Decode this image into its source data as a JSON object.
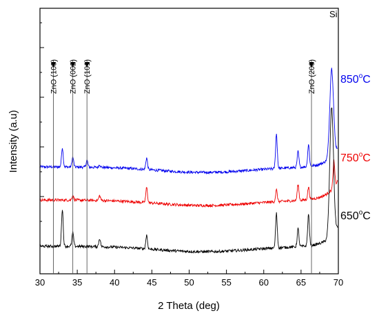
{
  "chart_data": {
    "type": "line",
    "title": "",
    "xlabel": "2 Theta (deg)",
    "ylabel": "Intensity (a.u)",
    "xlim": [
      30,
      70
    ],
    "x_ticks": [
      "30",
      "35",
      "40",
      "45",
      "50",
      "55",
      "60",
      "65",
      "70"
    ],
    "y_tick_labels_shown": false,
    "grid": false,
    "reference_lines": [
      {
        "x": 31.8,
        "label": "ZnO (100)"
      },
      {
        "x": 34.4,
        "label": "ZnO (002)"
      },
      {
        "x": 36.3,
        "label": "ZnO (101)"
      },
      {
        "x": 66.4,
        "label": "ZnO (200)"
      }
    ],
    "annotation": {
      "text": "Si",
      "x": 69.1
    },
    "series": [
      {
        "name": "850",
        "unit_sup": "o",
        "unit": "C",
        "color": "#0000ee",
        "baseline": 155,
        "peaks": [
          {
            "x": 33.0,
            "h": 28
          },
          {
            "x": 34.4,
            "h": 14
          },
          {
            "x": 36.3,
            "h": 10
          },
          {
            "x": 38.0,
            "h": 4
          },
          {
            "x": 44.3,
            "h": 17
          },
          {
            "x": 61.7,
            "h": 50
          },
          {
            "x": 64.6,
            "h": 23
          },
          {
            "x": 66.0,
            "h": 32
          },
          {
            "x": 69.1,
            "h": 128
          }
        ]
      },
      {
        "name": "750",
        "unit_sup": "o",
        "unit": "C",
        "color": "#ee0000",
        "baseline": 107,
        "peaks": [
          {
            "x": 34.4,
            "h": 7
          },
          {
            "x": 38.0,
            "h": 7
          },
          {
            "x": 44.3,
            "h": 22
          },
          {
            "x": 61.7,
            "h": 17
          },
          {
            "x": 64.6,
            "h": 23
          },
          {
            "x": 66.0,
            "h": 18
          },
          {
            "x": 69.4,
            "h": 38
          }
        ]
      },
      {
        "name": "650",
        "unit_sup": "o",
        "unit": "C",
        "color": "#000000",
        "baseline": 40,
        "peaks": [
          {
            "x": 33.0,
            "h": 54
          },
          {
            "x": 34.4,
            "h": 20
          },
          {
            "x": 38.0,
            "h": 12
          },
          {
            "x": 44.3,
            "h": 20
          },
          {
            "x": 61.7,
            "h": 50
          },
          {
            "x": 64.6,
            "h": 26
          },
          {
            "x": 66.0,
            "h": 46
          },
          {
            "x": 69.1,
            "h": 187
          }
        ]
      }
    ]
  }
}
